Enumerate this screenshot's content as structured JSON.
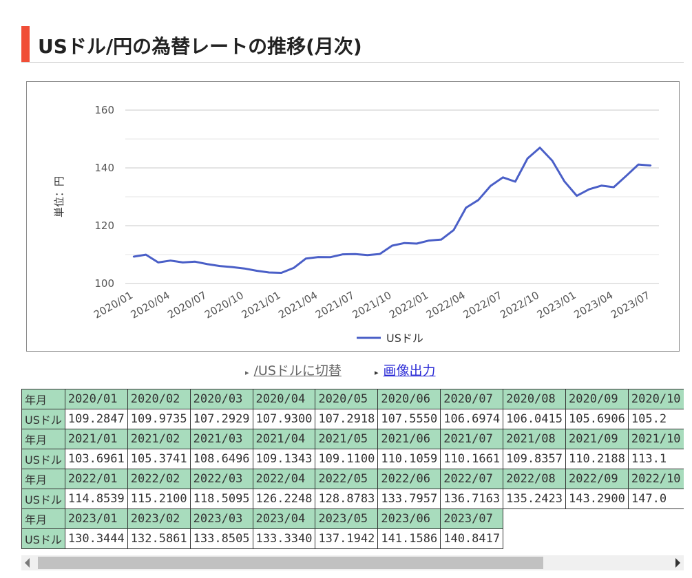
{
  "page": {
    "title": "USドル/円の為替レートの推移(月次)",
    "link_switch": "/USドルに切替",
    "link_image": "画像出力"
  },
  "colors": {
    "accent": "#f04e37",
    "line": "#4a5fc7",
    "table_header": "#a8dcbd",
    "link": "#2b2bd6"
  },
  "chart_data": {
    "type": "line",
    "ylabel": "単位：円",
    "ylim": [
      100,
      160
    ],
    "yticks": [
      100,
      120,
      140,
      160
    ],
    "grid": true,
    "legend_position": "bottom",
    "x": [
      "2020/01",
      "2020/02",
      "2020/03",
      "2020/04",
      "2020/05",
      "2020/06",
      "2020/07",
      "2020/08",
      "2020/09",
      "2020/10",
      "2020/11",
      "2020/12",
      "2021/01",
      "2021/02",
      "2021/03",
      "2021/04",
      "2021/05",
      "2021/06",
      "2021/07",
      "2021/08",
      "2021/09",
      "2021/10",
      "2021/11",
      "2021/12",
      "2022/01",
      "2022/02",
      "2022/03",
      "2022/04",
      "2022/05",
      "2022/06",
      "2022/07",
      "2022/08",
      "2022/09",
      "2022/10",
      "2022/11",
      "2022/12",
      "2023/01",
      "2023/02",
      "2023/03",
      "2023/04",
      "2023/05",
      "2023/06",
      "2023/07"
    ],
    "xtick_labels": [
      "2020/01",
      "2020/04",
      "2020/07",
      "2020/10",
      "2021/01",
      "2021/04",
      "2021/07",
      "2021/10",
      "2022/01",
      "2022/04",
      "2022/07",
      "2022/10",
      "2023/01",
      "2023/04",
      "2023/07"
    ],
    "series": [
      {
        "name": "USドル",
        "values": [
          109.2847,
          109.9735,
          107.2929,
          107.93,
          107.2918,
          107.555,
          106.6974,
          106.0415,
          105.6906,
          105.2,
          104.4,
          103.8,
          103.6961,
          105.3741,
          108.6496,
          109.1343,
          109.11,
          110.1059,
          110.1661,
          109.8357,
          110.2188,
          113.1,
          114.0,
          113.8,
          114.8539,
          115.21,
          118.5095,
          126.2248,
          128.8783,
          133.7957,
          136.7163,
          135.2423,
          143.29,
          147.0,
          142.5,
          135.3,
          130.3444,
          132.5861,
          133.8505,
          133.334,
          137.1942,
          141.1586,
          140.8417
        ]
      }
    ]
  },
  "table": {
    "row_label_month": "年月",
    "row_label_usd": "USドル",
    "blocks": [
      {
        "months": [
          "2020/01",
          "2020/02",
          "2020/03",
          "2020/04",
          "2020/05",
          "2020/06",
          "2020/07",
          "2020/08",
          "2020/09",
          "2020/10"
        ],
        "values": [
          "109.2847",
          "109.9735",
          "107.2929",
          "107.9300",
          "107.2918",
          "107.5550",
          "106.6974",
          "106.0415",
          "105.6906",
          "105.2"
        ]
      },
      {
        "months": [
          "2021/01",
          "2021/02",
          "2021/03",
          "2021/04",
          "2021/05",
          "2021/06",
          "2021/07",
          "2021/08",
          "2021/09",
          "2021/10"
        ],
        "values": [
          "103.6961",
          "105.3741",
          "108.6496",
          "109.1343",
          "109.1100",
          "110.1059",
          "110.1661",
          "109.8357",
          "110.2188",
          "113.1"
        ]
      },
      {
        "months": [
          "2022/01",
          "2022/02",
          "2022/03",
          "2022/04",
          "2022/05",
          "2022/06",
          "2022/07",
          "2022/08",
          "2022/09",
          "2022/10"
        ],
        "values": [
          "114.8539",
          "115.2100",
          "118.5095",
          "126.2248",
          "128.8783",
          "133.7957",
          "136.7163",
          "135.2423",
          "143.2900",
          "147.0"
        ]
      },
      {
        "months": [
          "2023/01",
          "2023/02",
          "2023/03",
          "2023/04",
          "2023/05",
          "2023/06",
          "2023/07"
        ],
        "values": [
          "130.3444",
          "132.5861",
          "133.8505",
          "133.3340",
          "137.1942",
          "141.1586",
          "140.8417"
        ]
      }
    ]
  }
}
